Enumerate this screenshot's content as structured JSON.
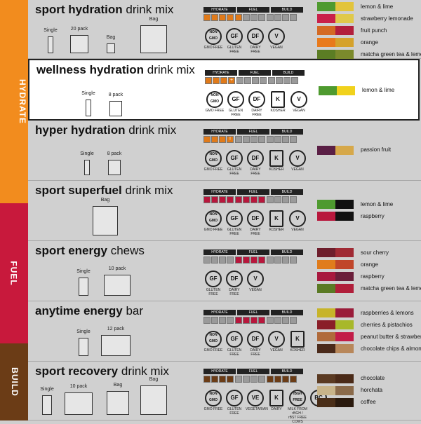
{
  "categories": {
    "hydrate": "HYDRATE",
    "fuel": "FUEL",
    "build": "BUILD"
  },
  "colors": {
    "hydrate": "#f28c1e",
    "fuel": "#c8193c",
    "build": "#6b3c16"
  },
  "hfb_headers": [
    "HYDRATE",
    "FUEL",
    "BUILD"
  ],
  "products": [
    {
      "name_bold": "sport hydration",
      "name_light": "drink mix",
      "packages": [
        {
          "label": "Single",
          "icon": "single-packet-icon"
        },
        {
          "label": "20 pack",
          "icon": "box-pack-icon"
        },
        {
          "label": "Bag",
          "icon": "bag-icon"
        },
        {
          "label": "Bag",
          "icon": "bag-icon"
        }
      ],
      "badges": [
        {
          "mark": "NON GMO",
          "label": "GMO FREE"
        },
        {
          "mark": "GF",
          "label": "GLUTEN FREE"
        },
        {
          "mark": "DF",
          "label": "DAIRY FREE"
        },
        {
          "mark": "V",
          "label": "VEGAN"
        }
      ],
      "flavors": [
        {
          "name": "lemon & lime",
          "colors": [
            "#4e9a2f",
            "#e2c43c"
          ]
        },
        {
          "name": "strawberry lemonade",
          "colors": [
            "#c9204a",
            "#e0c94a"
          ]
        },
        {
          "name": "fruit punch",
          "colors": [
            "#d46a24",
            "#b21f3c"
          ]
        },
        {
          "name": "orange",
          "colors": [
            "#e87a1c",
            "#d5a22c"
          ]
        },
        {
          "name": "matcha green tea & lemon",
          "colors": [
            "#5b7d24",
            "#7b8a2c"
          ]
        }
      ]
    },
    {
      "name_bold": "wellness hydration",
      "name_light": "drink mix",
      "packages": [
        {
          "label": "Single",
          "icon": "single-packet-icon"
        },
        {
          "label": "8 pack",
          "icon": "box-pack-icon"
        }
      ],
      "badges": [
        {
          "mark": "NON GMO",
          "label": "GMO FREE"
        },
        {
          "mark": "GF",
          "label": "GLUTEN FREE"
        },
        {
          "mark": "DF",
          "label": "DAIRY FREE"
        },
        {
          "mark": "K",
          "label": "KOSHER"
        },
        {
          "mark": "V",
          "label": "VEGAN"
        }
      ],
      "flavors": [
        {
          "name": "lemon & lime",
          "colors": [
            "#4e9a2f",
            "#f1d21c"
          ]
        }
      ]
    },
    {
      "name_bold": "hyper hydration",
      "name_light": "drink mix",
      "packages": [
        {
          "label": "Single",
          "icon": "single-packet-icon"
        },
        {
          "label": "8 pack",
          "icon": "box-pack-icon"
        }
      ],
      "badges": [
        {
          "mark": "NON GMO",
          "label": "GMO FREE"
        },
        {
          "mark": "GF",
          "label": "GLUTEN FREE"
        },
        {
          "mark": "DF",
          "label": "DAIRY FREE"
        },
        {
          "mark": "K",
          "label": "KOSHER"
        },
        {
          "mark": "V",
          "label": "VEGAN"
        }
      ],
      "flavors": [
        {
          "name": "passion fruit",
          "colors": [
            "#5a1f45",
            "#d6a84a"
          ]
        }
      ]
    },
    {
      "name_bold": "sport superfuel",
      "name_light": "drink mix",
      "packages": [
        {
          "label": "Bag",
          "icon": "bag-icon"
        }
      ],
      "badges": [
        {
          "mark": "NON GMO",
          "label": "GMO FREE"
        },
        {
          "mark": "GF",
          "label": "GLUTEN FREE"
        },
        {
          "mark": "DF",
          "label": "DAIRY FREE"
        },
        {
          "mark": "K",
          "label": "KOSHER"
        },
        {
          "mark": "V",
          "label": "VEGAN"
        }
      ],
      "flavors": [
        {
          "name": "lemon & lime",
          "colors": [
            "#4e9a2f",
            "#111111"
          ]
        },
        {
          "name": "raspberry",
          "colors": [
            "#b8173c",
            "#111111"
          ]
        }
      ]
    },
    {
      "name_bold": "sport energy",
      "name_light": "chews",
      "packages": [
        {
          "label": "Single",
          "icon": "single-packet-icon"
        },
        {
          "label": "10 pack",
          "icon": "box-pack-icon"
        }
      ],
      "badges": [
        {
          "mark": "GF",
          "label": "GLUTEN FREE"
        },
        {
          "mark": "DF",
          "label": "DAIRY FREE"
        },
        {
          "mark": "V",
          "label": "VEGAN"
        }
      ],
      "flavors": [
        {
          "name": "sour cherry",
          "colors": [
            "#6e1e2c",
            "#a02a34"
          ]
        },
        {
          "name": "orange",
          "colors": [
            "#e07c1c",
            "#c0462a"
          ]
        },
        {
          "name": "raspberry",
          "colors": [
            "#a8183e",
            "#6a1e3a"
          ]
        },
        {
          "name": "matcha green tea & lemon",
          "colors": [
            "#5a7a24",
            "#b01e3a"
          ]
        }
      ]
    },
    {
      "name_bold": "anytime energy",
      "name_light": "bar",
      "packages": [
        {
          "label": "Single",
          "icon": "single-packet-icon"
        },
        {
          "label": "12 pack",
          "icon": "box-pack-icon"
        }
      ],
      "badges": [
        {
          "mark": "NON GMO",
          "label": "GMO FREE"
        },
        {
          "mark": "GF",
          "label": "GLUTEN FREE"
        },
        {
          "mark": "DF",
          "label": "DAIRY FREE"
        },
        {
          "mark": "V",
          "label": "VEGAN"
        },
        {
          "mark": "K",
          "label": "KOSHER"
        }
      ],
      "flavors": [
        {
          "name": "raspberries & lemons",
          "colors": [
            "#c7b42a",
            "#9a1c3a"
          ]
        },
        {
          "name": "cherries & pistachios",
          "colors": [
            "#8a1e28",
            "#a8b82a"
          ]
        },
        {
          "name": "peanut butter & strawberries",
          "colors": [
            "#b06a3a",
            "#c21c48"
          ]
        },
        {
          "name": "chocolate chips & almonds",
          "colors": [
            "#4a2a1a",
            "#b8875a"
          ]
        }
      ]
    },
    {
      "name_bold": "sport recovery",
      "name_light": "drink mix",
      "packages": [
        {
          "label": "Single",
          "icon": "single-packet-icon"
        },
        {
          "label": "10 pack",
          "icon": "box-pack-icon"
        },
        {
          "label": "Bag",
          "icon": "bag-icon"
        },
        {
          "label": "Bag",
          "icon": "bag-icon"
        }
      ],
      "badges": [
        {
          "mark": "NON GMO",
          "label": "GMO FREE"
        },
        {
          "mark": "GF",
          "label": "GLUTEN FREE"
        },
        {
          "mark": "VE",
          "label": "VEGETARIAN"
        },
        {
          "mark": "K",
          "label": "DAIRY"
        },
        {
          "mark": "rBGH FREE",
          "label": "MILK FROM rBGH / rBST FREE COWS"
        },
        {
          "mark": "BC",
          "label": ""
        }
      ],
      "flavors": [
        {
          "name": "chocolate",
          "colors": [
            "#5a3a22",
            "#4a2a18"
          ]
        },
        {
          "name": "horchata",
          "colors": [
            "#c8b48a",
            "#8a6a4a"
          ]
        },
        {
          "name": "coffee",
          "colors": [
            "#4a2e18",
            "#2a1a0e"
          ]
        }
      ]
    }
  ]
}
